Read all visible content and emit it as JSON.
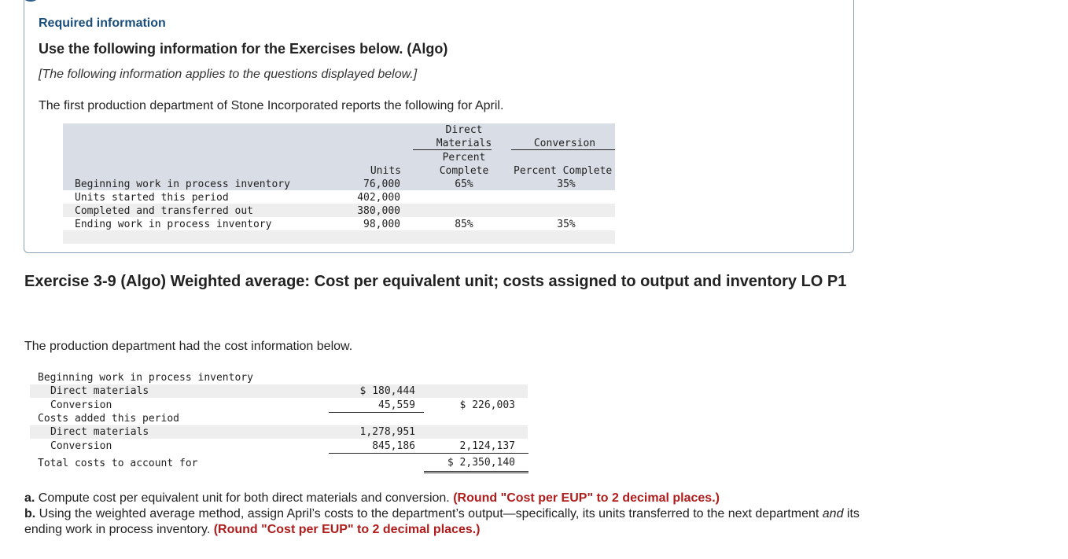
{
  "info": {
    "required_title": "Required information",
    "use_title": "Use the following information for the Exercises below. (Algo)",
    "applies_note": "[The following information applies to the questions displayed below.]",
    "intro": "The first production department of Stone Incorporated reports the following for April."
  },
  "units_table": {
    "headers": {
      "units": "Units",
      "dm_line1": "Direct",
      "dm_line2": "Materials",
      "dm_line3": "Percent",
      "dm_line4": "Complete",
      "conv_line1": "Conversion",
      "conv_line2": "Percent Complete"
    },
    "rows": [
      {
        "label": "Beginning work in process inventory",
        "units": "76,000",
        "dm": "65%",
        "conv": "35%"
      },
      {
        "label": "Units started this period",
        "units": "402,000",
        "dm": "",
        "conv": ""
      },
      {
        "label": "Completed and transferred out",
        "units": "380,000",
        "dm": "",
        "conv": ""
      },
      {
        "label": "Ending work in process inventory",
        "units": "98,000",
        "dm": "85%",
        "conv": "35%"
      }
    ]
  },
  "exercise": {
    "title": "Exercise 3-9 (Algo) Weighted average: Cost per equivalent unit; costs assigned to output and inventory LO P1",
    "cost_intro": "The production department had the cost information below."
  },
  "cost_table": {
    "beginning_label": "Beginning work in process inventory",
    "beg_dm_label": "Direct materials",
    "beg_dm_value": "$ 180,444",
    "beg_conv_label": "Conversion",
    "beg_conv_value": "45,559",
    "beg_total": "$ 226,003",
    "added_label": "Costs added this period",
    "add_dm_label": "Direct materials",
    "add_dm_value": "1,278,951",
    "add_conv_label": "Conversion",
    "add_conv_value": "845,186",
    "add_total": "2,124,137",
    "total_label": "Total costs to account for",
    "total_value": "$ 2,350,140"
  },
  "instructions": {
    "a_prefix": "a.",
    "a_text": " Compute cost per equivalent unit for both direct materials and conversion. ",
    "a_round": "(Round \"Cost per EUP\" to 2 decimal places.)",
    "b_prefix": "b.",
    "b_text_1": " Using the weighted average method, assign April’s costs to the department’s output—specifically, its units transferred to the next department ",
    "b_and": "and",
    "b_text_2": " its ending work in process inventory. ",
    "b_round": "(Round \"Cost per EUP\" to 2 decimal places.)"
  }
}
